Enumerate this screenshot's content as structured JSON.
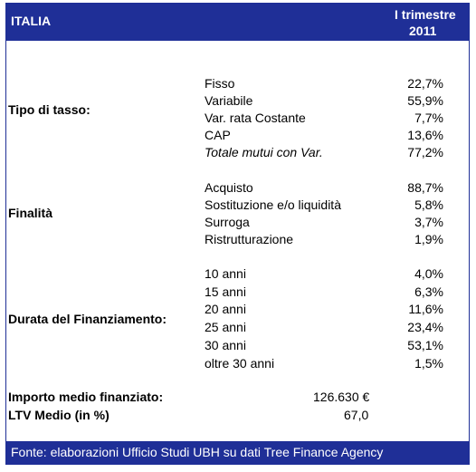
{
  "header": {
    "country": "ITALIA",
    "period_line1": "I trimestre",
    "period_line2": "2011"
  },
  "groups": [
    {
      "label": "Tipo di tasso:",
      "rows": [
        {
          "label": "Fisso",
          "value": "22,7%"
        },
        {
          "label": "Variabile",
          "value": "55,9%"
        },
        {
          "label": "Var. rata Costante",
          "value": "7,7%"
        },
        {
          "label": "CAP",
          "value": "13,6%"
        },
        {
          "label": "Totale mutui con Var.",
          "value": "77,2%"
        }
      ]
    },
    {
      "label": "Finalità",
      "rows": [
        {
          "label": "Acquisto",
          "value": "88,7%"
        },
        {
          "label": "Sostituzione e/o liquidità",
          "value": "5,8%"
        },
        {
          "label": "Surroga",
          "value": "3,7%"
        },
        {
          "label": "Ristrutturazione",
          "value": "1,9%"
        }
      ]
    },
    {
      "label": "Durata del Finanziamento:",
      "rows": [
        {
          "label": "10 anni",
          "value": "4,0%"
        },
        {
          "label": "15 anni",
          "value": "6,3%"
        },
        {
          "label": "20 anni",
          "value": "11,6%"
        },
        {
          "label": "25 anni",
          "value": "23,4%"
        },
        {
          "label": "30 anni",
          "value": "53,1%"
        },
        {
          "label": "oltre 30 anni",
          "value": "1,5%"
        }
      ]
    }
  ],
  "summary": [
    {
      "label": "Importo medio finanziato:",
      "value": "126.630 €"
    },
    {
      "label": "LTV Medio (in %)",
      "value": "67,0"
    }
  ],
  "footer": "Fonte: elaborazioni Ufficio Studi UBH su dati Tree Finance Agency",
  "colors": {
    "header_bg": "#1f2f97",
    "header_text": "#ffffff"
  }
}
